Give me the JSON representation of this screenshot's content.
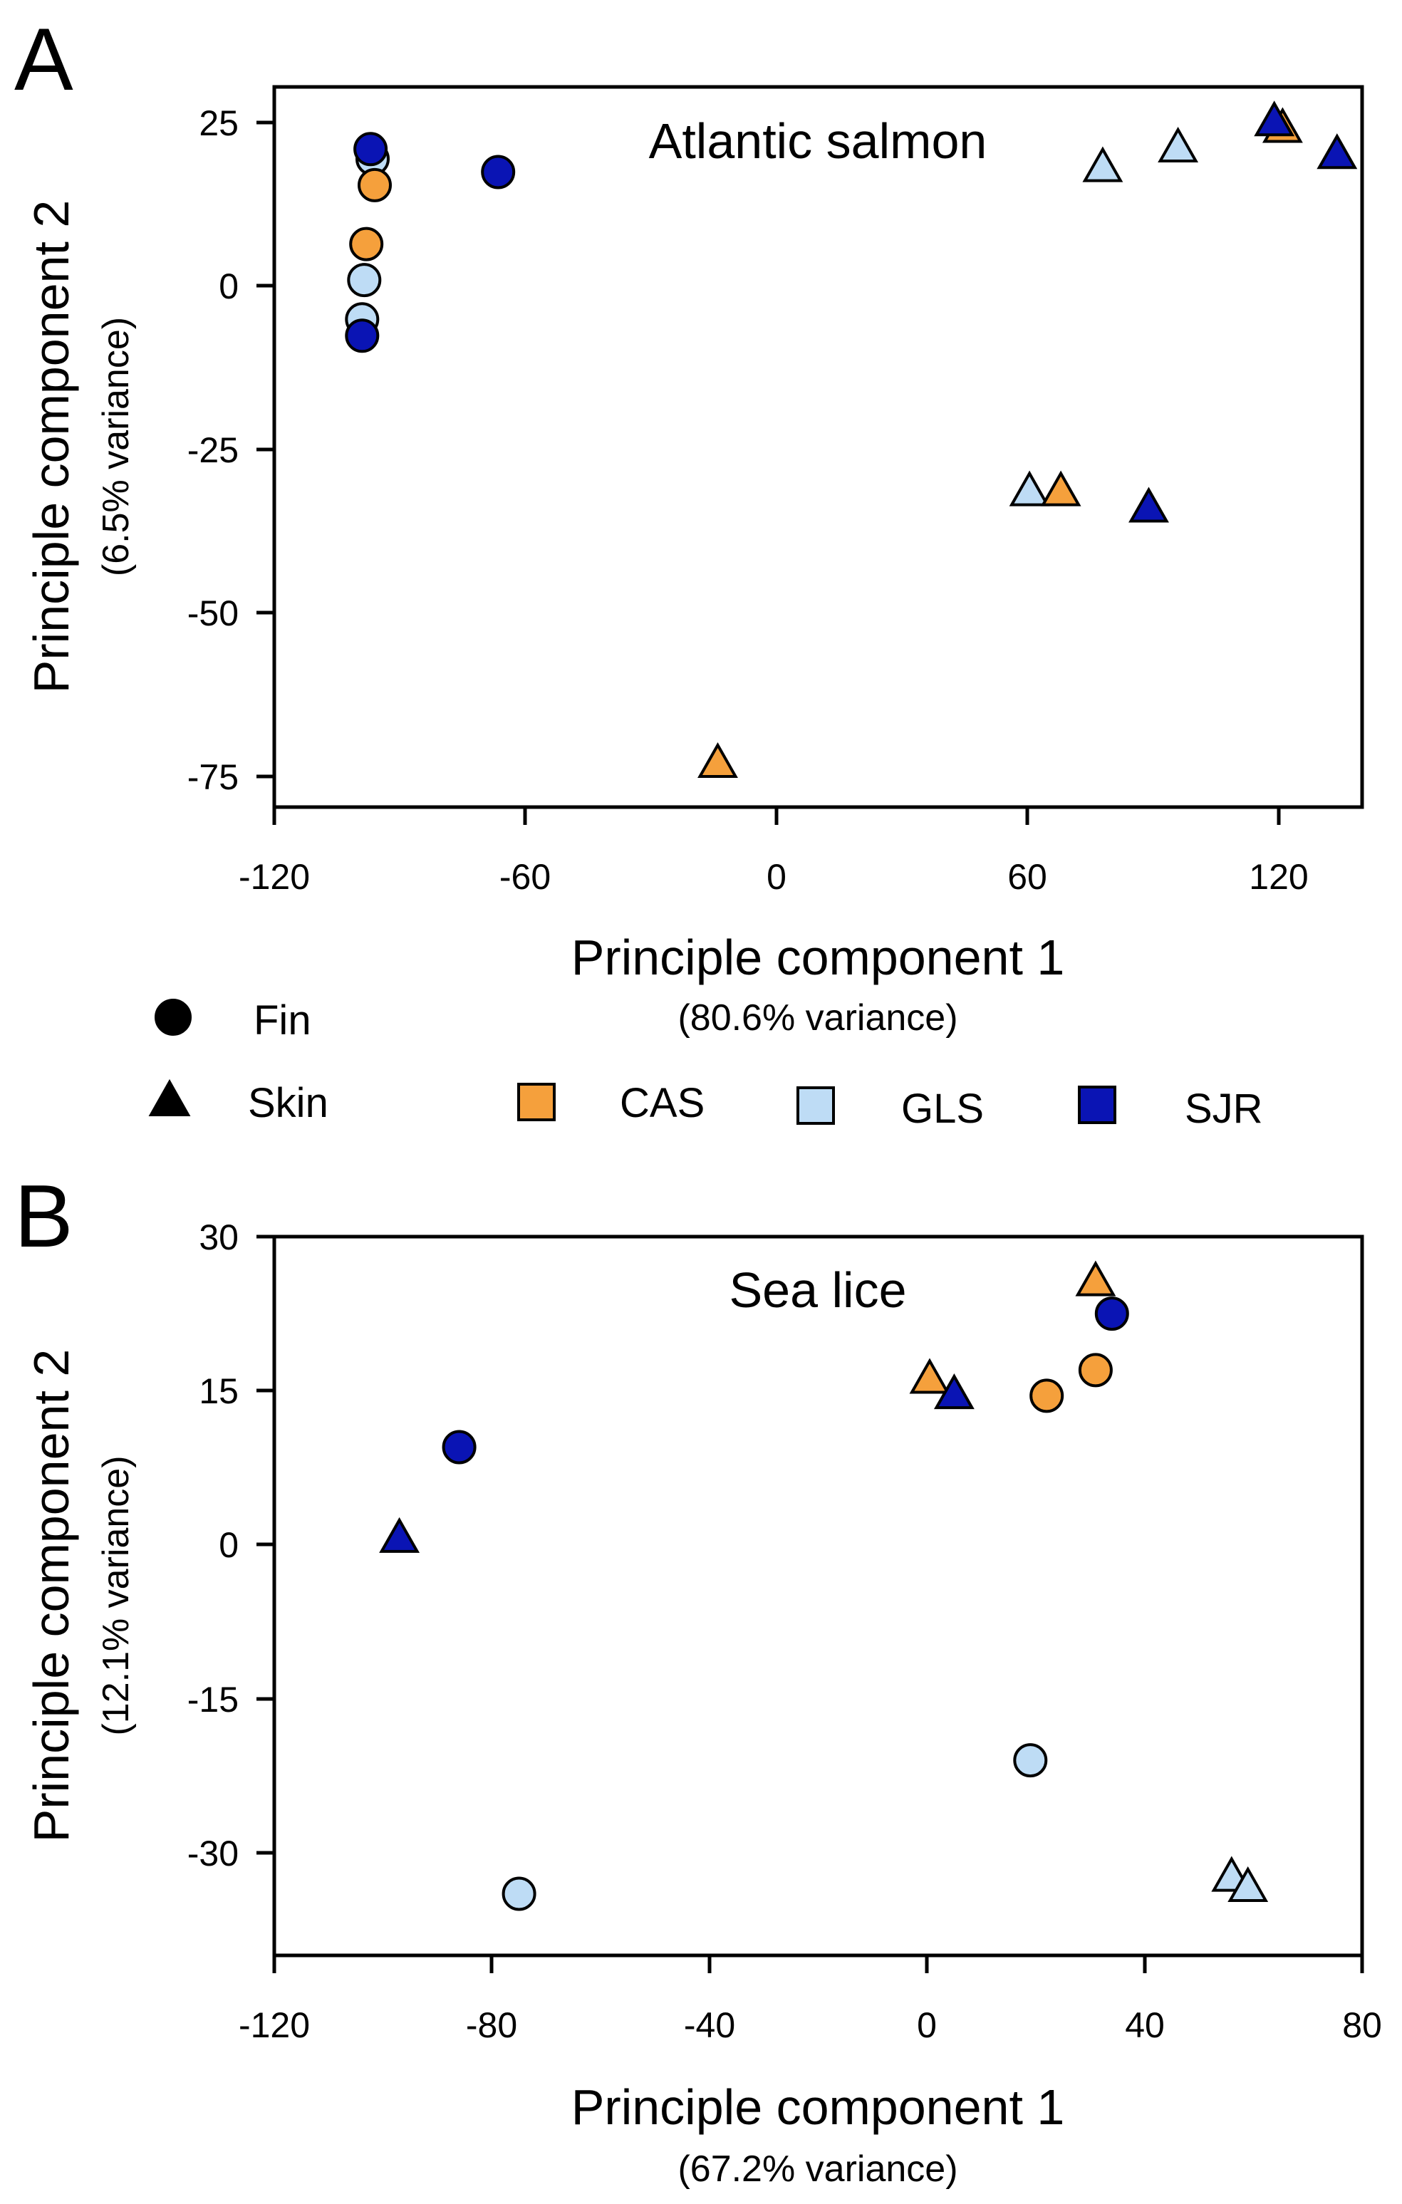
{
  "colors": {
    "CAS": "#F5A03C",
    "GLS": "#BEDCF5",
    "SJR": "#0A14B4"
  },
  "legend": {
    "shapes": [
      {
        "label": "Fin",
        "shape": "circle"
      },
      {
        "label": "Skin",
        "shape": "triangle"
      }
    ],
    "groups": [
      {
        "label": "CAS",
        "color": "#F5A03C"
      },
      {
        "label": "GLS",
        "color": "#BEDCF5"
      },
      {
        "label": "SJR",
        "color": "#0A14B4"
      }
    ]
  },
  "chart_data": [
    {
      "panel": "A",
      "type": "scatter",
      "title": "Atlantic salmon",
      "xlabel": "Principle component 1",
      "xlabel_sub": "(80.6% variance)",
      "ylabel": "Principle component 2",
      "ylabel_sub": "(6.5% variance)",
      "xlim": [
        -120,
        140
      ],
      "ylim": [
        -80,
        30
      ],
      "xticks": [
        -120,
        -60,
        0,
        60,
        120
      ],
      "xtick_labels": [
        "-120",
        "-60",
        "0",
        "60",
        "120"
      ],
      "yticks": [
        25,
        0,
        -25,
        -50,
        -75
      ],
      "ytick_labels": [
        "25",
        "0",
        "-25",
        "-50",
        "-75"
      ],
      "points": [
        {
          "x": -97,
          "y": 20.5,
          "group": "SJR",
          "tissue": "Fin"
        },
        {
          "x": -96.5,
          "y": 19,
          "group": "GLS",
          "tissue": "Fin"
        },
        {
          "x": -96,
          "y": 15,
          "group": "CAS",
          "tissue": "Fin"
        },
        {
          "x": -66.5,
          "y": 17,
          "group": "SJR",
          "tissue": "Fin"
        },
        {
          "x": -98,
          "y": 6,
          "group": "CAS",
          "tissue": "Fin"
        },
        {
          "x": -98.5,
          "y": 0.5,
          "group": "GLS",
          "tissue": "Fin"
        },
        {
          "x": -99,
          "y": -8,
          "group": "SJR",
          "tissue": "Fin"
        },
        {
          "x": -99,
          "y": -5.5,
          "group": "GLS",
          "tissue": "Fin"
        },
        {
          "x": 119,
          "y": 24.5,
          "group": "SJR",
          "tissue": "Skin"
        },
        {
          "x": 121,
          "y": 23.5,
          "group": "CAS",
          "tissue": "Skin"
        },
        {
          "x": 134,
          "y": 19.5,
          "group": "SJR",
          "tissue": "Skin"
        },
        {
          "x": 96,
          "y": 20.5,
          "group": "GLS",
          "tissue": "Skin"
        },
        {
          "x": 78,
          "y": 17.5,
          "group": "GLS",
          "tissue": "Skin"
        },
        {
          "x": 60.5,
          "y": -32,
          "group": "GLS",
          "tissue": "Skin"
        },
        {
          "x": 68,
          "y": -32,
          "group": "CAS",
          "tissue": "Skin"
        },
        {
          "x": 89,
          "y": -34.5,
          "group": "SJR",
          "tissue": "Skin"
        },
        {
          "x": -14,
          "y": -73.5,
          "group": "CAS",
          "tissue": "Skin"
        }
      ]
    },
    {
      "panel": "B",
      "type": "scatter",
      "title": "Sea lice",
      "xlabel": "Principle component 1",
      "xlabel_sub": "(67.2% variance)",
      "ylabel": "Principle component 2",
      "ylabel_sub": "(12.1% variance)",
      "xlim": [
        -120,
        80
      ],
      "ylim": [
        -40,
        30
      ],
      "xticks": [
        -120,
        -80,
        -40,
        0,
        40,
        80
      ],
      "xtick_labels": [
        "-120",
        "-80",
        "-40",
        "0",
        "40",
        "80"
      ],
      "yticks": [
        30,
        15,
        0,
        -15,
        -30
      ],
      "ytick_labels": [
        "30",
        "15",
        "0",
        "-15",
        "-30"
      ],
      "points": [
        {
          "x": 31,
          "y": 25.5,
          "group": "CAS",
          "tissue": "Skin"
        },
        {
          "x": 34,
          "y": 22.5,
          "group": "SJR",
          "tissue": "Fin"
        },
        {
          "x": 31,
          "y": 17,
          "group": "CAS",
          "tissue": "Fin"
        },
        {
          "x": 22,
          "y": 14.5,
          "group": "CAS",
          "tissue": "Fin"
        },
        {
          "x": 0.5,
          "y": 16,
          "group": "CAS",
          "tissue": "Skin"
        },
        {
          "x": 5,
          "y": 14.5,
          "group": "SJR",
          "tissue": "Skin"
        },
        {
          "x": -86,
          "y": 9.5,
          "group": "SJR",
          "tissue": "Fin"
        },
        {
          "x": -97,
          "y": 0.5,
          "group": "SJR",
          "tissue": "Skin"
        },
        {
          "x": 19,
          "y": -21,
          "group": "GLS",
          "tissue": "Fin"
        },
        {
          "x": -75,
          "y": -34,
          "group": "GLS",
          "tissue": "Fin"
        },
        {
          "x": 56,
          "y": -32.5,
          "group": "GLS",
          "tissue": "Skin"
        },
        {
          "x": 59,
          "y": -33.5,
          "group": "GLS",
          "tissue": "Skin"
        }
      ]
    }
  ]
}
